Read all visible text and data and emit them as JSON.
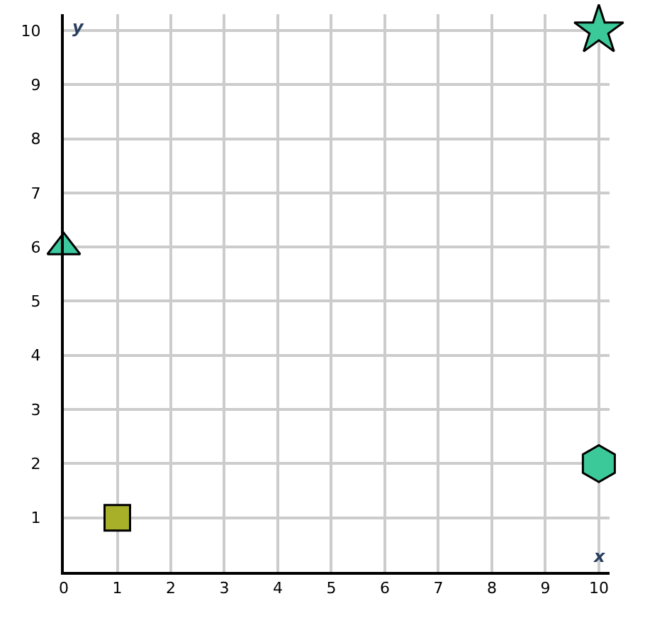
{
  "chart_data": {
    "type": "scatter",
    "xlabel": "x",
    "ylabel": "y",
    "xlim": [
      0,
      10.2
    ],
    "ylim": [
      0,
      10.3
    ],
    "xticks": [
      0,
      1,
      2,
      3,
      4,
      5,
      6,
      7,
      8,
      9,
      10
    ],
    "yticks": [
      1,
      2,
      3,
      4,
      5,
      6,
      7,
      8,
      9,
      10
    ],
    "grid": true,
    "series": [
      {
        "color": "#3cc9a0",
        "marker": "triangle",
        "x": [
          0
        ],
        "values": [
          6
        ]
      },
      {
        "color": "#a8b02a",
        "marker": "square",
        "x": [
          1
        ],
        "values": [
          1
        ]
      },
      {
        "color": "#3cc99a",
        "marker": "star",
        "x": [
          10
        ],
        "values": [
          10
        ]
      },
      {
        "color": "#3cc99a",
        "x": [
          10
        ],
        "values": [
          2
        ]
      }
    ]
  }
}
